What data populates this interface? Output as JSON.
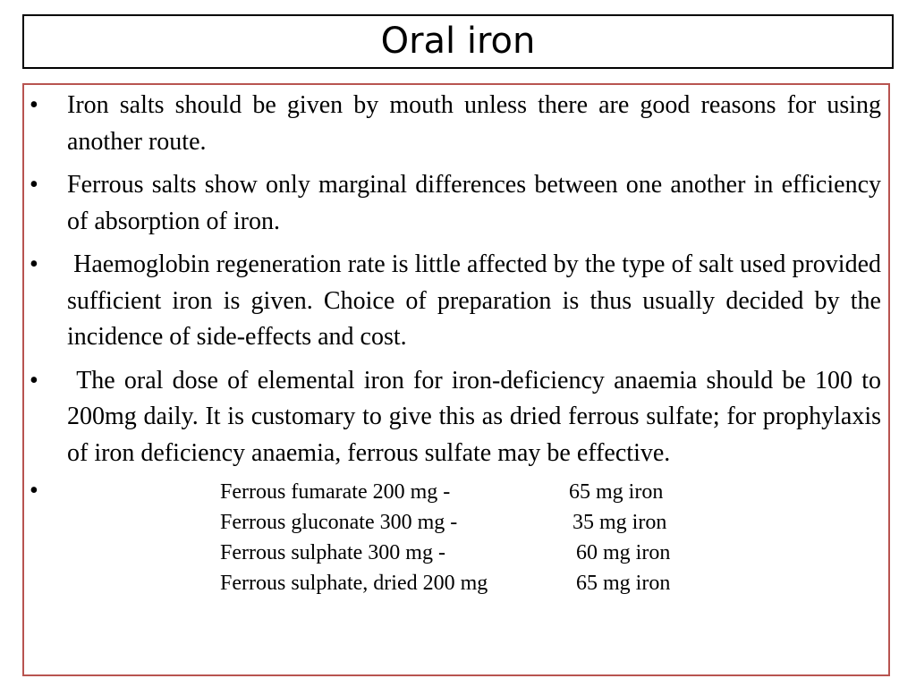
{
  "slide": {
    "title": "Oral iron",
    "bullets": [
      "Iron salts should be given by mouth unless there are good reasons for using another route.",
      "Ferrous salts show only marginal differences between one another in efficiency of absorption of iron.",
      " Haemoglobin regeneration rate is little affected by the type of salt used provided sufficient iron is given. Choice of preparation is thus usually decided by the incidence of side-effects and cost.",
      " The oral dose of elemental iron for iron-deficiency anaemia should be 100 to 200mg daily. It is customary to give this as dried ferrous sulfate; for prophylaxis of iron deficiency anaemia, ferrous sulfate may be effective."
    ],
    "bullet_symbol": "•",
    "iron_table": [
      {
        "preparation": "Ferrous fumarate 200 mg -",
        "elemental_iron": "65 mg iron"
      },
      {
        "preparation": "Ferrous gluconate 300 mg -",
        "elemental_iron": "35 mg iron"
      },
      {
        "preparation": "Ferrous sulphate 300 mg -",
        "elemental_iron": "60 mg iron"
      },
      {
        "preparation": "Ferrous sulphate, dried 200 mg",
        "elemental_iron": "65 mg iron"
      }
    ],
    "colors": {
      "title_border": "#000000",
      "content_border": "#b85450",
      "text": "#000000",
      "background": "#ffffff"
    }
  }
}
